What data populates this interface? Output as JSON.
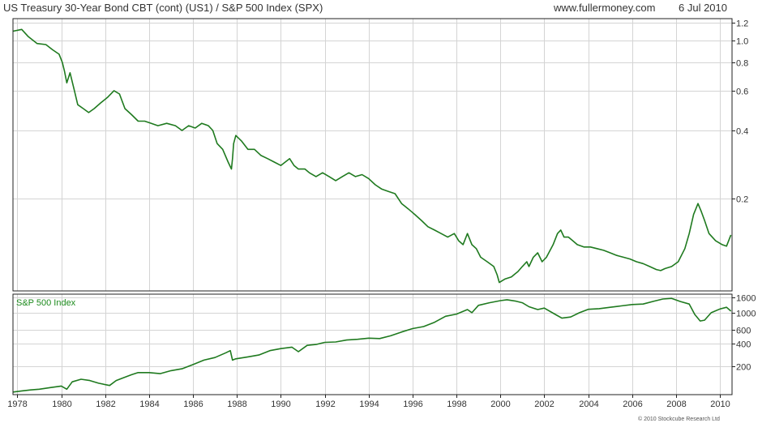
{
  "header": {
    "title": "US Treasury 30-Year  Bond CBT (cont) (US1) / S&P 500 Index (SPX)",
    "source": "www.fullermoney.com",
    "date": "6 Jul 2010"
  },
  "copyright": "© 2010 Stockcube Research Ltd",
  "colors": {
    "line": "#1f7a1f",
    "grid": "#d4d4d4",
    "frame": "#222222",
    "label": "#1c8a1c"
  },
  "chart_data": [
    {
      "type": "line",
      "panel": "top",
      "scale": "log",
      "ylim": [
        0.078,
        1.25
      ],
      "xlim": [
        1977.8,
        2010.55
      ],
      "yticks": [
        0.2,
        0.4,
        0.6,
        0.8,
        1.0,
        1.2
      ],
      "ytick_labels": [
        "0.2",
        "0.4",
        "0.6",
        "0.8",
        "1.0",
        "1.2"
      ],
      "grid": true,
      "series": [
        {
          "x": [
            1977.8,
            1978.2,
            1978.5,
            1978.9,
            1979.3,
            1979.6,
            1979.9,
            1980.05,
            1980.15,
            1980.25,
            1980.4,
            1980.6,
            1980.75,
            1981.0,
            1981.25,
            1981.5,
            1981.8,
            1982.1,
            1982.4,
            1982.65,
            1982.9,
            1983.2,
            1983.5,
            1983.8,
            1984.1,
            1984.4,
            1984.8,
            1985.2,
            1985.5,
            1985.8,
            1986.1,
            1986.4,
            1986.7,
            1986.9,
            1987.1,
            1987.35,
            1987.6,
            1987.75,
            1987.8,
            1987.85,
            1987.95,
            1988.2,
            1988.5,
            1988.8,
            1989.1,
            1989.4,
            1989.7,
            1990.0,
            1990.4,
            1990.6,
            1990.8,
            1991.1,
            1991.3,
            1991.6,
            1991.9,
            1992.2,
            1992.5,
            1992.8,
            1993.1,
            1993.4,
            1993.7,
            1994.0,
            1994.3,
            1994.6,
            1994.9,
            1995.2,
            1995.5,
            1995.8,
            1996.1,
            1996.4,
            1996.7,
            1997.0,
            1997.3,
            1997.6,
            1997.9,
            1998.1,
            1998.3,
            1998.5,
            1998.7,
            1998.9,
            1999.1,
            1999.4,
            1999.7,
            1999.85,
            1999.95,
            2000.2,
            2000.5,
            2000.8,
            2001.0,
            2001.2,
            2001.3,
            2001.5,
            2001.7,
            2001.9,
            2002.1,
            2002.4,
            2002.6,
            2002.75,
            2002.9,
            2003.1,
            2003.3,
            2003.5,
            2003.8,
            2004.1,
            2004.4,
            2004.7,
            2005.0,
            2005.3,
            2005.6,
            2005.9,
            2006.2,
            2006.5,
            2006.8,
            2007.1,
            2007.3,
            2007.5,
            2007.8,
            2008.1,
            2008.4,
            2008.6,
            2008.8,
            2009.0,
            2009.15,
            2009.3,
            2009.5,
            2009.8,
            2010.1,
            2010.3,
            2010.5
          ],
          "y": [
            1.1,
            1.12,
            1.04,
            0.97,
            0.96,
            0.91,
            0.87,
            0.8,
            0.73,
            0.65,
            0.72,
            0.6,
            0.52,
            0.5,
            0.48,
            0.5,
            0.53,
            0.56,
            0.6,
            0.58,
            0.5,
            0.47,
            0.44,
            0.44,
            0.43,
            0.42,
            0.43,
            0.42,
            0.4,
            0.42,
            0.41,
            0.43,
            0.42,
            0.4,
            0.35,
            0.33,
            0.29,
            0.27,
            0.3,
            0.35,
            0.38,
            0.36,
            0.33,
            0.33,
            0.31,
            0.3,
            0.29,
            0.28,
            0.3,
            0.28,
            0.27,
            0.27,
            0.26,
            0.25,
            0.26,
            0.25,
            0.24,
            0.25,
            0.26,
            0.25,
            0.255,
            0.245,
            0.23,
            0.22,
            0.215,
            0.21,
            0.19,
            0.18,
            0.17,
            0.16,
            0.15,
            0.145,
            0.14,
            0.135,
            0.14,
            0.13,
            0.125,
            0.14,
            0.125,
            0.12,
            0.11,
            0.105,
            0.1,
            0.092,
            0.085,
            0.088,
            0.09,
            0.095,
            0.1,
            0.105,
            0.1,
            0.11,
            0.115,
            0.105,
            0.11,
            0.125,
            0.14,
            0.145,
            0.135,
            0.135,
            0.13,
            0.125,
            0.122,
            0.122,
            0.12,
            0.118,
            0.115,
            0.112,
            0.11,
            0.108,
            0.105,
            0.103,
            0.1,
            0.097,
            0.096,
            0.098,
            0.1,
            0.105,
            0.12,
            0.14,
            0.17,
            0.19,
            0.175,
            0.16,
            0.14,
            0.13,
            0.125,
            0.123,
            0.138
          ]
        }
      ]
    },
    {
      "type": "line",
      "panel": "bottom",
      "scale": "log",
      "title": "S&P 500 Index",
      "ylim": [
        85,
        1750
      ],
      "xlim": [
        1977.8,
        2010.55
      ],
      "yticks": [
        200,
        400,
        600,
        1000,
        1600
      ],
      "ytick_labels": [
        "200",
        "400",
        "600",
        "1000",
        "1600"
      ],
      "xticks": [
        1978,
        1980,
        1982,
        1984,
        1986,
        1988,
        1990,
        1992,
        1994,
        1996,
        1998,
        2000,
        2002,
        2004,
        2006,
        2008,
        2010
      ],
      "xtick_labels": [
        "1978",
        "1980",
        "1982",
        "1984",
        "1986",
        "1988",
        "1990",
        "1992",
        "1994",
        "1996",
        "1998",
        "2000",
        "2002",
        "2004",
        "2006",
        "2008",
        "2010"
      ],
      "grid": true,
      "series": [
        {
          "x": [
            1977.8,
            1978.2,
            1978.6,
            1979.0,
            1979.5,
            1980.0,
            1980.25,
            1980.5,
            1980.9,
            1981.3,
            1981.7,
            1982.2,
            1982.5,
            1982.8,
            1983.2,
            1983.5,
            1984.0,
            1984.5,
            1985.0,
            1985.5,
            1986.0,
            1986.5,
            1987.0,
            1987.5,
            1987.7,
            1987.8,
            1987.95,
            1988.5,
            1989.0,
            1989.5,
            1990.0,
            1990.5,
            1990.8,
            1991.2,
            1991.6,
            1992.0,
            1992.5,
            1993.0,
            1993.5,
            1994.0,
            1994.5,
            1995.0,
            1995.5,
            1996.0,
            1996.5,
            1997.0,
            1997.5,
            1998.0,
            1998.5,
            1998.7,
            1999.0,
            1999.5,
            2000.0,
            2000.3,
            2000.7,
            2001.0,
            2001.3,
            2001.7,
            2002.0,
            2002.5,
            2002.8,
            2003.2,
            2003.6,
            2004.0,
            2004.5,
            2005.0,
            2005.5,
            2006.0,
            2006.5,
            2007.0,
            2007.4,
            2007.8,
            2008.2,
            2008.6,
            2008.85,
            2009.1,
            2009.3,
            2009.6,
            2010.0,
            2010.3,
            2010.5
          ],
          "y": [
            92,
            95,
            98,
            100,
            105,
            110,
            100,
            125,
            135,
            130,
            120,
            112,
            130,
            140,
            155,
            165,
            165,
            160,
            175,
            185,
            210,
            240,
            260,
            300,
            320,
            240,
            250,
            265,
            280,
            320,
            340,
            355,
            310,
            375,
            385,
            410,
            415,
            440,
            450,
            465,
            460,
            500,
            560,
            620,
            660,
            750,
            900,
            960,
            1100,
            1000,
            1250,
            1350,
            1440,
            1480,
            1420,
            1350,
            1200,
            1100,
            1150,
            950,
            850,
            880,
            1000,
            1110,
            1130,
            1180,
            1230,
            1280,
            1300,
            1420,
            1510,
            1540,
            1400,
            1300,
            950,
            780,
            800,
            1000,
            1120,
            1180,
            1050
          ]
        }
      ]
    }
  ]
}
